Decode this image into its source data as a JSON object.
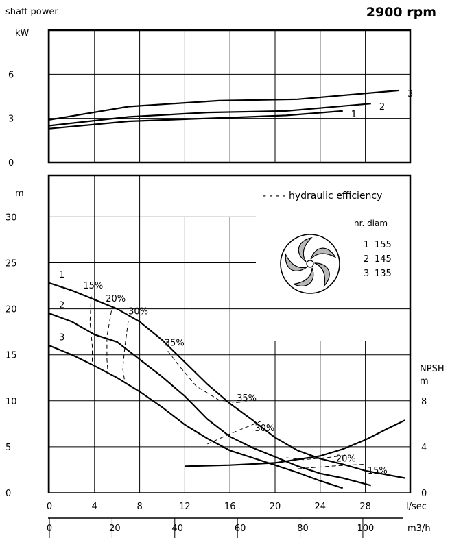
{
  "chart_data": {
    "type": "line",
    "title": "2900 rpm",
    "x_labels": [
      "l/sec",
      "m3/h"
    ],
    "flow_ticks_ls": [
      0,
      4,
      8,
      12,
      16,
      20,
      24,
      28
    ],
    "flow_ticks_m3h": [
      0,
      20,
      40,
      60,
      80,
      100
    ],
    "power_panel": {
      "ylabel": "shaft power",
      "unit": "kW",
      "yticks": [
        0,
        3,
        6
      ],
      "ylim": [
        0,
        9
      ],
      "series": [
        {
          "name": "1",
          "x": [
            0,
            7,
            14,
            21,
            26
          ],
          "y": [
            2.3,
            2.8,
            3.0,
            3.2,
            3.5
          ]
        },
        {
          "name": "2",
          "x": [
            0,
            7,
            14,
            21,
            28.5
          ],
          "y": [
            2.5,
            3.1,
            3.4,
            3.5,
            4.0
          ]
        },
        {
          "name": "3",
          "x": [
            0,
            7,
            15,
            22,
            31
          ],
          "y": [
            2.9,
            3.8,
            4.2,
            4.3,
            4.9
          ]
        }
      ]
    },
    "head_panel": {
      "ylabel": "m",
      "yticks": [
        0,
        5,
        10,
        15,
        20,
        25,
        30
      ],
      "ylim": [
        0,
        34.5
      ],
      "series": [
        {
          "name": "1",
          "x": [
            0,
            2,
            4,
            6,
            8,
            10,
            12,
            14,
            16,
            18,
            20,
            22,
            24,
            26,
            28,
            31.5
          ],
          "y": [
            22.8,
            22.0,
            21.0,
            20.0,
            18.6,
            16.6,
            14.2,
            11.8,
            9.7,
            7.9,
            6.0,
            4.6,
            3.7,
            3.1,
            2.4,
            1.6
          ]
        },
        {
          "name": "2",
          "x": [
            0,
            2,
            4,
            6,
            8,
            10,
            12,
            14,
            16,
            18,
            20,
            22,
            24,
            26,
            28.5
          ],
          "y": [
            19.5,
            18.6,
            17.2,
            16.4,
            14.5,
            12.6,
            10.5,
            8.0,
            6.1,
            4.9,
            3.9,
            2.9,
            2.1,
            1.6,
            0.8
          ]
        },
        {
          "name": "3",
          "x": [
            0,
            2,
            4,
            6,
            8,
            10,
            12,
            14,
            16,
            18,
            20,
            22,
            24,
            26
          ],
          "y": [
            16.0,
            15.0,
            13.8,
            12.5,
            11.0,
            9.3,
            7.4,
            5.9,
            4.6,
            3.8,
            3.0,
            2.2,
            1.3,
            0.5
          ]
        }
      ],
      "npsh": {
        "label": "NPSH",
        "unit": "m",
        "yticks": [
          0,
          4,
          8
        ],
        "x": [
          12,
          16,
          20,
          24,
          26,
          28,
          30,
          31.5
        ],
        "y": [
          2.3,
          2.4,
          2.6,
          3.2,
          3.8,
          4.6,
          5.6,
          6.3
        ]
      },
      "efficiency_labels": [
        "15%",
        "20%",
        "30%",
        "35%",
        "35%",
        "30%",
        "20%",
        "15%"
      ],
      "legend_text": "- - - - hydraulic efficiency",
      "diameter_header": "nr. diam",
      "diameters": [
        {
          "nr": "1",
          "diam": "155"
        },
        {
          "nr": "2",
          "diam": "145"
        },
        {
          "nr": "3",
          "diam": "135"
        }
      ]
    }
  }
}
